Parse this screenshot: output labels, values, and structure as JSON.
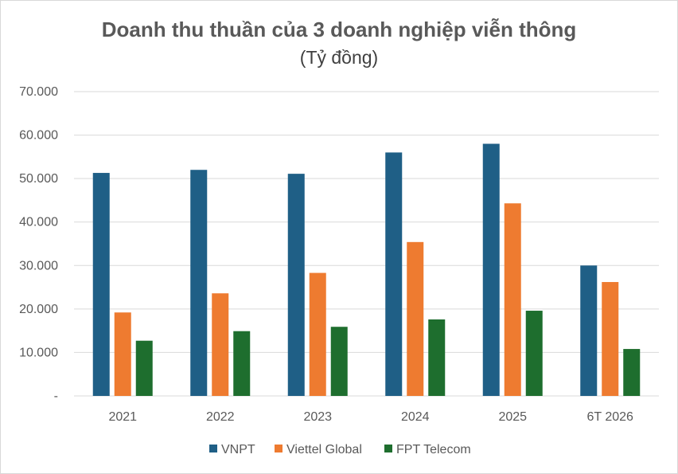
{
  "chart_data": {
    "type": "bar",
    "title": "Doanh thu thuần của 3 doanh nghiệp viễn thông",
    "subtitle": "(Tỷ đồng)",
    "categories": [
      "2021",
      "2022",
      "2023",
      "2024",
      "2025",
      "6T 2026"
    ],
    "series": [
      {
        "name": "VNPT",
        "color": "#1f5f86",
        "values": [
          51300,
          52000,
          51100,
          56000,
          58000,
          30000
        ]
      },
      {
        "name": "Viettel Global",
        "color": "#ee7b30",
        "values": [
          19200,
          23600,
          28300,
          35400,
          44300,
          26200
        ]
      },
      {
        "name": "FPT Telecom",
        "color": "#1e6e2e",
        "values": [
          12700,
          14900,
          15900,
          17600,
          19600,
          10800
        ]
      }
    ],
    "ylim": [
      0,
      70000
    ],
    "yticks": [
      {
        "value": 0,
        "label": "-"
      },
      {
        "value": 10000,
        "label": "10.000"
      },
      {
        "value": 20000,
        "label": "20.000"
      },
      {
        "value": 30000,
        "label": "30.000"
      },
      {
        "value": 40000,
        "label": "40.000"
      },
      {
        "value": 50000,
        "label": "50.000"
      },
      {
        "value": 60000,
        "label": "60.000"
      },
      {
        "value": 70000,
        "label": "70.000"
      }
    ],
    "grid": true,
    "gridColor": "#d9d9d9",
    "legendPosition": "bottom"
  }
}
